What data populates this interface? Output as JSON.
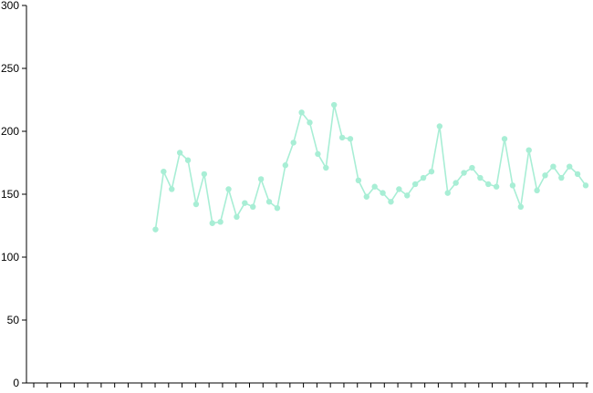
{
  "chart_data": {
    "type": "line",
    "title": "",
    "xlabel": "",
    "ylabel": "",
    "ylim": [
      0,
      300
    ],
    "yticks": [
      0,
      50,
      100,
      150,
      200,
      250,
      300
    ],
    "xtick_count": 42,
    "grid": false,
    "legend": "none",
    "series": [
      {
        "color": "#a8eed5",
        "values": [
          null,
          null,
          null,
          null,
          null,
          null,
          null,
          null,
          null,
          null,
          null,
          null,
          null,
          null,
          null,
          122,
          168,
          154,
          183,
          177,
          142,
          166,
          127,
          128,
          154,
          132,
          143,
          140,
          162,
          144,
          139,
          173,
          191,
          215,
          207,
          182,
          171,
          221,
          195,
          194,
          161,
          148,
          156,
          151,
          144,
          154,
          149,
          158,
          163,
          168,
          204,
          151,
          159,
          167,
          171,
          163,
          158,
          156,
          194,
          157,
          140,
          185,
          153,
          165,
          172,
          163,
          172,
          166,
          157
        ]
      }
    ]
  }
}
